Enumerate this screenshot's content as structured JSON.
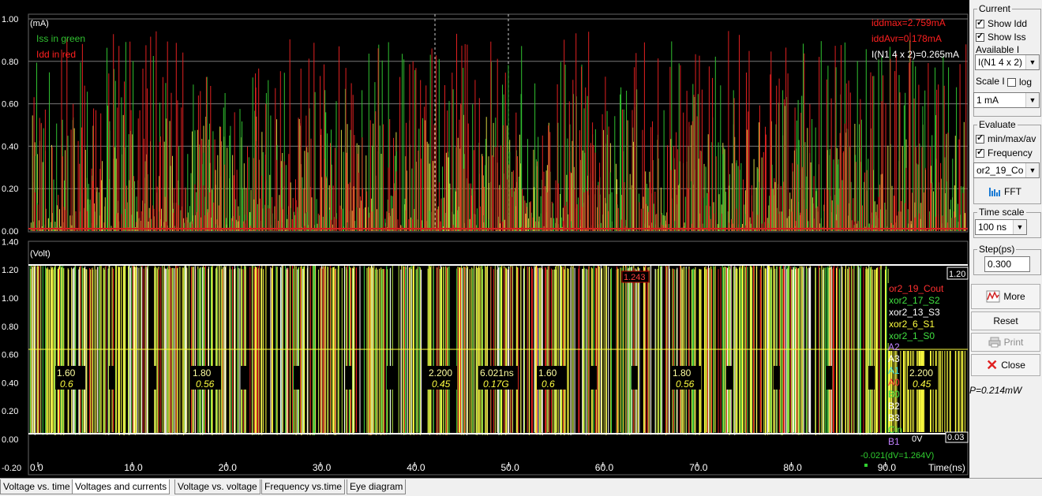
{
  "current_plot": {
    "unit_label": "(mA)",
    "legend_iss": "Iss in green",
    "legend_idd": "Idd in red",
    "y_ticks": [
      "1.00",
      "0.80",
      "0.60",
      "0.40",
      "0.20",
      "0.00"
    ],
    "iddmax": "iddmax=2.759mA",
    "iddavr": "iddAvr=0.178mA",
    "inode": "I(N1 4 x 2)=0.265mA"
  },
  "voltage_plot": {
    "unit_label": "(Volt)",
    "y_ticks": [
      "1.40",
      "1.20",
      "1.00",
      "0.80",
      "0.60",
      "0.40",
      "0.20",
      "0.00",
      "-0.20"
    ],
    "cursor_value": "1.243",
    "max_value": "1.20",
    "zero_label": "0V",
    "zero_value": "0.03",
    "delta_readout": "-0.021(dV=1.264V)",
    "time_axis": [
      "0.0",
      "10.0",
      "20.0",
      "30.0",
      "40.0",
      "50.0",
      "60.0",
      "70.0",
      "80.0",
      "90.0"
    ],
    "time_unit": "Time(ns)",
    "signals": [
      {
        "name": "or2_19_Cout",
        "color": "#ff3030"
      },
      {
        "name": "xor2_17_S2",
        "color": "#40e040"
      },
      {
        "name": "xor2_13_S3",
        "color": "#ffffff"
      },
      {
        "name": "xor2_6_S1",
        "color": "#ffff40"
      },
      {
        "name": "xor2_1_S0",
        "color": "#40e040"
      }
    ],
    "bus_labels": [
      {
        "name": "A2",
        "color": "#c080ff"
      },
      {
        "name": "A3",
        "color": "#ffffff"
      },
      {
        "name": "A1",
        "color": "#40e0e0"
      },
      {
        "name": "A0",
        "color": "#ff3030"
      },
      {
        "name": "B0",
        "color": "#40e040"
      },
      {
        "name": "B2",
        "color": "#ffffff"
      },
      {
        "name": "B3",
        "color": "#ffffff"
      },
      {
        "name": "Cin",
        "color": "#40e040"
      },
      {
        "name": "B1",
        "color": "#c080ff"
      }
    ],
    "freq_labels": [
      {
        "top": "1.60",
        "bottom": "0.6"
      },
      {
        "top": "1.80",
        "bottom": "0.56"
      },
      {
        "top": "2.200",
        "bottom": "0.45"
      },
      {
        "top": "6.021ns",
        "bottom": "0.17G"
      },
      {
        "top": "1.60",
        "bottom": "0.6"
      },
      {
        "top": "1.80",
        "bottom": "0.56"
      },
      {
        "top": "2.200",
        "bottom": "0.45"
      }
    ]
  },
  "panel": {
    "current_group": "Current",
    "show_idd": "Show Idd",
    "show_iss": "Show Iss",
    "available_i": "Available I",
    "available_i_value": "I(N1 4 x 2)",
    "scale_i": "Scale I",
    "log": "log",
    "scale_value": "1 mA",
    "evaluate_group": "Evaluate",
    "minmax": "min/max/av",
    "frequency": "Frequency",
    "eval_signal": "or2_19_Co",
    "fft": "FFT",
    "time_scale_group": "Time scale",
    "time_scale_value": "100 ns",
    "step_group": "Step(ps)",
    "step_value": "0.300",
    "more": "More",
    "reset": "Reset",
    "print": "Print",
    "close": "Close",
    "power": "P=0.214mW"
  },
  "tabs": [
    {
      "label": "Voltage vs. time"
    },
    {
      "label": "Voltages and currents"
    },
    {
      "label": "Voltage vs. voltage"
    },
    {
      "label": "Frequency vs.time"
    },
    {
      "label": "Eye diagram"
    }
  ]
}
